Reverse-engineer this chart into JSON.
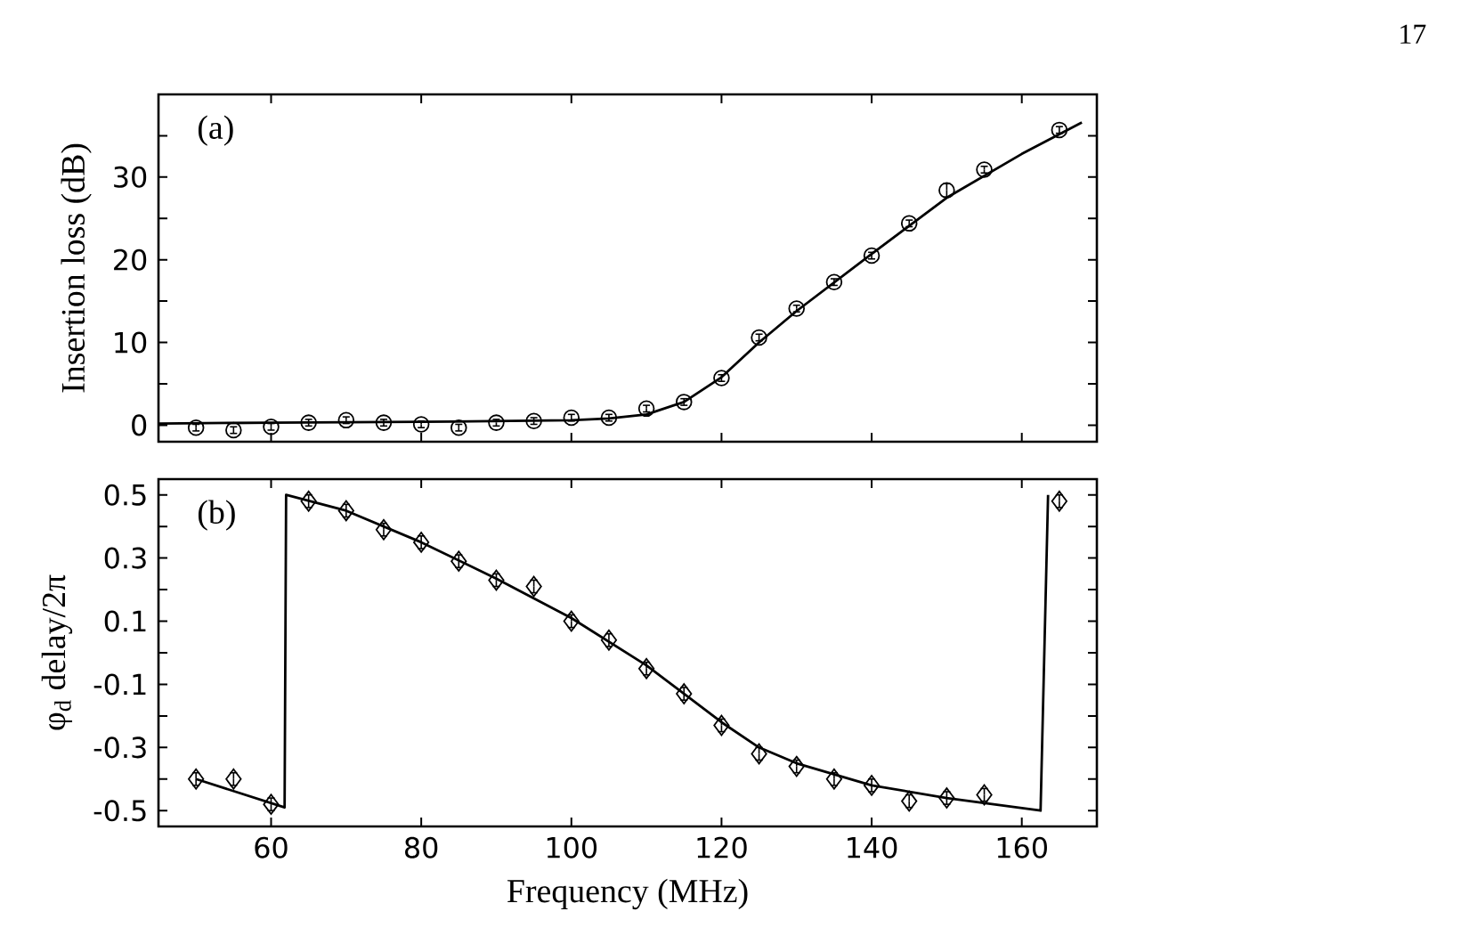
{
  "chart_data": [
    {
      "type": "scatter",
      "ylabel": "Insertion loss (dB)",
      "annotations": [
        "(a)",
        "17"
      ],
      "xlim": [
        45,
        170
      ],
      "ylim": [
        -2,
        40
      ],
      "xticks": [
        60,
        80,
        100,
        120,
        140,
        160
      ],
      "yticks": [
        0,
        {
          "value": 5,
          "label": null
        },
        10,
        {
          "value": 15,
          "label": null
        },
        20,
        {
          "value": 25,
          "label": null
        },
        30,
        {
          "value": 35,
          "label": null
        }
      ],
      "tick_labels": "y",
      "series": [
        {
          "marker": "circle",
          "color": "#000000",
          "x": [
            50,
            55,
            60,
            65,
            70,
            75,
            80,
            85,
            90,
            95,
            100,
            105,
            110,
            115,
            120,
            125,
            130,
            135,
            140,
            145,
            150,
            155,
            165
          ],
          "values": [
            -0.3,
            -0.6,
            -0.2,
            0.3,
            0.6,
            0.3,
            0.1,
            -0.3,
            0.3,
            0.5,
            0.9,
            0.9,
            2.0,
            2.8,
            5.7,
            10.6,
            14.1,
            17.3,
            20.5,
            24.4,
            28.4,
            30.9,
            35.7
          ],
          "errors": [
            0.4,
            0.4,
            0.4,
            0.4,
            0.4,
            0.4,
            0.4,
            0.4,
            0.4,
            0.4,
            0.4,
            0.4,
            0.4,
            0.4,
            0.4,
            0.4,
            0.4,
            0.4,
            0.4,
            0.4,
            0.8,
            0.4,
            0.4
          ]
        },
        {
          "type": "line",
          "marker": "none",
          "line_style": "solid",
          "color": "#000000",
          "x": [
            45,
            60,
            80,
            100,
            105,
            110,
            115,
            120,
            125,
            130,
            140,
            150,
            160,
            168
          ],
          "values": [
            0.2,
            0.3,
            0.4,
            0.6,
            0.8,
            1.3,
            2.8,
            5.8,
            10.0,
            13.8,
            20.7,
            27.5,
            32.8,
            36.6
          ]
        }
      ]
    },
    {
      "type": "scatter",
      "ylabel": "φ$_{d}$ delay/2π",
      "xlabel": "Frequency (MHz)",
      "annotations": [
        "(b)"
      ],
      "xlim": [
        45,
        170
      ],
      "ylim": [
        -0.55,
        0.55
      ],
      "xticks": [
        60,
        80,
        100,
        120,
        140,
        160
      ],
      "yticks": [
        {
          "value": -0.5,
          "label": "-0.5"
        },
        {
          "value": -0.4,
          "label": null
        },
        {
          "value": -0.3,
          "label": "-0.3"
        },
        {
          "value": -0.2,
          "label": null
        },
        {
          "value": -0.1,
          "label": "-0.1"
        },
        {
          "value": 0,
          "label": null
        },
        0.1,
        {
          "value": 0.2,
          "label": null
        },
        0.3,
        {
          "value": 0.4,
          "label": null
        },
        0.5
      ],
      "series": [
        {
          "marker": "diamond",
          "color": "#000000",
          "x": [
            50,
            55,
            60,
            65,
            70,
            75,
            80,
            85,
            90,
            95,
            100,
            105,
            110,
            115,
            120,
            125,
            130,
            135,
            140,
            145,
            150,
            155,
            165
          ],
          "values": [
            -0.4,
            -0.4,
            -0.48,
            0.48,
            0.45,
            0.39,
            0.35,
            0.29,
            0.23,
            0.21,
            0.1,
            0.04,
            -0.05,
            -0.13,
            -0.23,
            -0.32,
            -0.36,
            -0.4,
            -0.42,
            -0.47,
            -0.46,
            -0.45,
            0.48
          ],
          "errors": [
            0.02,
            0.02,
            0.02,
            0.02,
            0.02,
            0.02,
            0.02,
            0.02,
            0.02,
            0.02,
            0.02,
            0.02,
            0.02,
            0.02,
            0.02,
            0.02,
            0.02,
            0.02,
            0.02,
            0.02,
            0.02,
            0.02,
            0.02
          ]
        },
        {
          "type": "line",
          "marker": "none",
          "line_style": "solid",
          "color": "#000000",
          "x": [
            50,
            61.8,
            62,
            70,
            80,
            90,
            100,
            110,
            120,
            125,
            130,
            140,
            150,
            162.5,
            163.5
          ],
          "values": [
            -0.4,
            -0.49,
            0.5,
            0.45,
            0.35,
            0.235,
            0.11,
            -0.04,
            -0.22,
            -0.3,
            -0.35,
            -0.42,
            -0.46,
            -0.5,
            0.5
          ]
        }
      ]
    }
  ]
}
